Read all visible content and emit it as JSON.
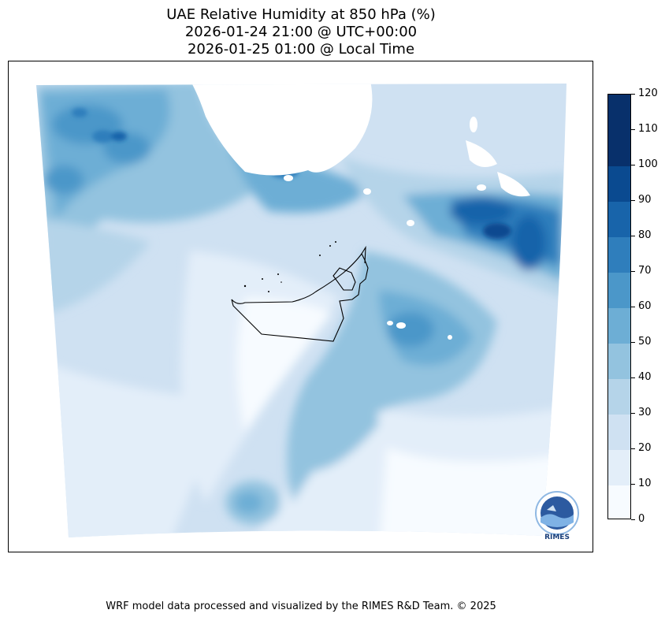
{
  "title": {
    "line1": "UAE Relative Humidity at 850 hPa (%)",
    "line2": "2026-01-24 21:00 @ UTC+00:00",
    "line3": "2026-01-25 01:00 @ Local Time"
  },
  "colorbar": {
    "ticks": [
      "0",
      "10",
      "20",
      "30",
      "40",
      "50",
      "60",
      "70",
      "80",
      "90",
      "100",
      "110",
      "120"
    ],
    "colors": [
      "#f7fbff",
      "#e3eef9",
      "#cfe1f2",
      "#b5d4e9",
      "#93c3df",
      "#6daed5",
      "#4b97c9",
      "#2f7ebc",
      "#1864aa",
      "#0a4a90",
      "#08306b",
      "#08306b"
    ]
  },
  "footer": "WRF model data processed and visualized by the RIMES R&D Team. © 2025",
  "logo": {
    "text": "RIMES"
  }
}
